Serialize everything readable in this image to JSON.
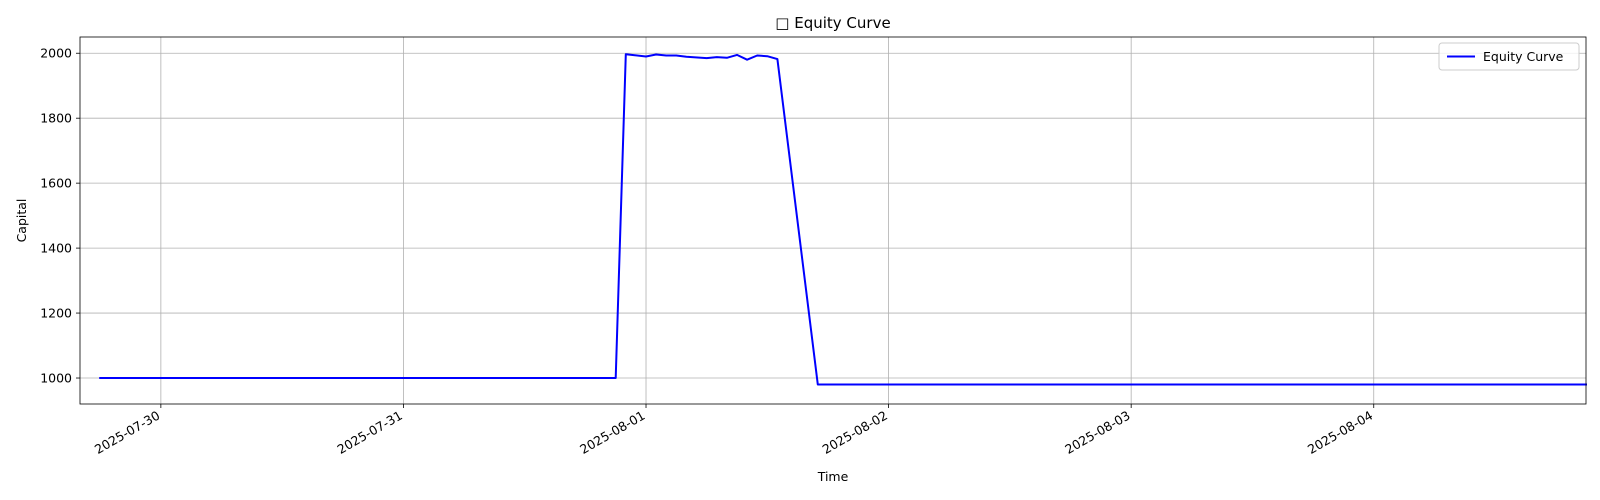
{
  "chart_data": {
    "type": "line",
    "title": "□ Equity Curve",
    "xlabel": "Time",
    "ylabel": "Capital",
    "x_type": "datetime",
    "xlim": [
      "2025-07-29T16:00",
      "2025-08-04T21:00"
    ],
    "ylim": [
      920,
      2050
    ],
    "x_ticks": [
      "2025-07-30",
      "2025-07-31",
      "2025-08-01",
      "2025-08-02",
      "2025-08-03",
      "2025-08-04"
    ],
    "y_ticks": [
      1000,
      1200,
      1400,
      1600,
      1800,
      2000
    ],
    "grid": true,
    "legend_position": "upper right",
    "series": [
      {
        "name": "Equity Curve",
        "color": "#0000ff",
        "points": [
          [
            "2025-07-29T18:00",
            1000
          ],
          [
            "2025-07-31T21:00",
            1000
          ],
          [
            "2025-07-31T22:00",
            1997
          ],
          [
            "2025-08-01T00:00",
            1990
          ],
          [
            "2025-08-01T01:00",
            1996
          ],
          [
            "2025-08-01T02:00",
            1993
          ],
          [
            "2025-08-01T03:00",
            1993
          ],
          [
            "2025-08-01T04:00",
            1989
          ],
          [
            "2025-08-01T06:00",
            1985
          ],
          [
            "2025-08-01T07:00",
            1988
          ],
          [
            "2025-08-01T08:00",
            1986
          ],
          [
            "2025-08-01T09:00",
            1995
          ],
          [
            "2025-08-01T10:00",
            1980
          ],
          [
            "2025-08-01T11:00",
            1993
          ],
          [
            "2025-08-01T12:00",
            1991
          ],
          [
            "2025-08-01T13:00",
            1982
          ],
          [
            "2025-08-01T17:00",
            980
          ],
          [
            "2025-08-04T21:00",
            980
          ]
        ]
      }
    ]
  }
}
